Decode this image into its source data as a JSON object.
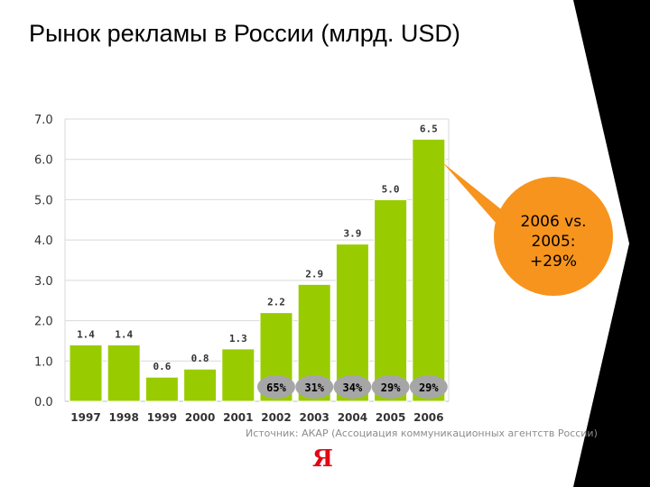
{
  "title": "Рынок рекламы в России (млрд. USD)",
  "source": "Источник: АКАР (Ассоциация коммуникационных агентств России)",
  "logo": "Я",
  "callout": {
    "line1": "2006 vs.",
    "line2": "2005:",
    "line3": "+29%"
  },
  "colors": {
    "bar": "#99cc00",
    "callout": "#f7941d",
    "growth_badge": "#a6a6a6",
    "band": "#000000",
    "logo": "#e30613"
  },
  "chart_data": {
    "type": "bar",
    "title": "Рынок рекламы в России (млрд. USD)",
    "xlabel": "",
    "ylabel": "",
    "categories": [
      "1997",
      "1998",
      "1999",
      "2000",
      "2001",
      "2002",
      "2003",
      "2004",
      "2005",
      "2006"
    ],
    "values": [
      1.4,
      1.4,
      0.6,
      0.8,
      1.3,
      2.2,
      2.9,
      3.9,
      5.0,
      6.5
    ],
    "value_labels": [
      "1.4",
      "1.4",
      "0.6",
      "0.8",
      "1.3",
      "2.2",
      "2.9",
      "3.9",
      "5.0",
      "6.5"
    ],
    "ylim": [
      0,
      7
    ],
    "yticks": [
      "0.0",
      "1.0",
      "2.0",
      "3.0",
      "4.0",
      "5.0",
      "6.0",
      "7.0"
    ],
    "grid": true,
    "growth_labels": [
      {
        "category": "2002",
        "label": "65%"
      },
      {
        "category": "2003",
        "label": "31%"
      },
      {
        "category": "2004",
        "label": "34%"
      },
      {
        "category": "2005",
        "label": "29%"
      },
      {
        "category": "2006",
        "label": "29%"
      }
    ]
  }
}
